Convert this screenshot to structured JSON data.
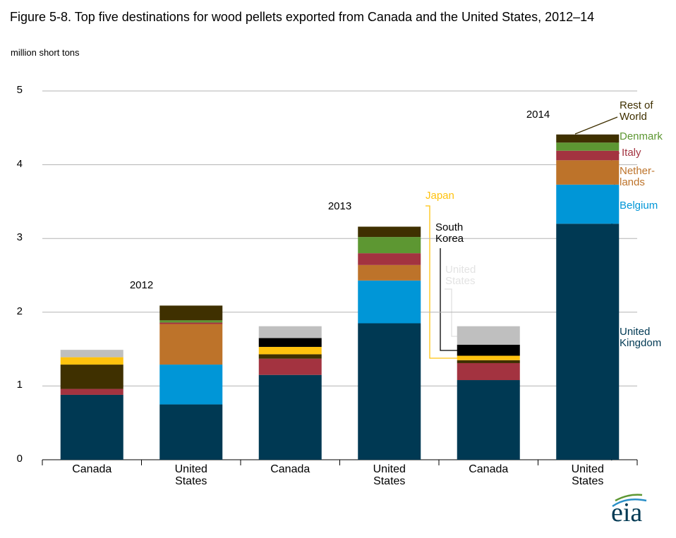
{
  "chart_data": {
    "type": "bar",
    "stacked": true,
    "title": "Figure 5-8. Top five destinations for wood pellets exported from Canada and the United States, 2012–14",
    "subtitle": "million short tons",
    "categories": [
      "Canada",
      "United States",
      "Canada",
      "United States",
      "Canada",
      "United States"
    ],
    "group_labels": [
      "2012",
      "2013",
      "2014"
    ],
    "ylim": [
      0,
      5
    ],
    "yticks": [
      0,
      1,
      2,
      3,
      4,
      5
    ],
    "grid": true,
    "series": [
      {
        "name": "United Kingdom",
        "color": "#003953",
        "values": [
          0.88,
          0.75,
          1.15,
          1.85,
          1.08,
          3.2
        ]
      },
      {
        "name": "Belgium",
        "color": "#0096d7",
        "values": [
          0,
          0.54,
          0,
          0.58,
          0,
          0.53
        ]
      },
      {
        "name": "Nether- lands",
        "color": "#bd732a",
        "values": [
          0,
          0.55,
          0,
          0.21,
          0,
          0.33
        ]
      },
      {
        "name": "Italy",
        "color": "#a33340",
        "values": [
          0.08,
          0.02,
          0.22,
          0.16,
          0.23,
          0.13
        ]
      },
      {
        "name": "Denmark",
        "color": "#5d9732",
        "values": [
          0,
          0.03,
          0,
          0.22,
          0,
          0.11
        ]
      },
      {
        "name": "Rest of World",
        "color": "#3f3000",
        "values": [
          0.33,
          0.2,
          0.06,
          0.14,
          0.04,
          0.11
        ]
      },
      {
        "name": "Japan",
        "color": "#ffc20e",
        "values": [
          0.1,
          0,
          0.1,
          0,
          0.06,
          0
        ]
      },
      {
        "name": "South Korea",
        "color": "#000000",
        "values": [
          0,
          0,
          0.12,
          0,
          0.15,
          0
        ]
      },
      {
        "name": "United States",
        "color": "#bfbfbf",
        "values": [
          0.1,
          0,
          0.16,
          0,
          0.25,
          0
        ]
      }
    ],
    "logo": "eia"
  }
}
